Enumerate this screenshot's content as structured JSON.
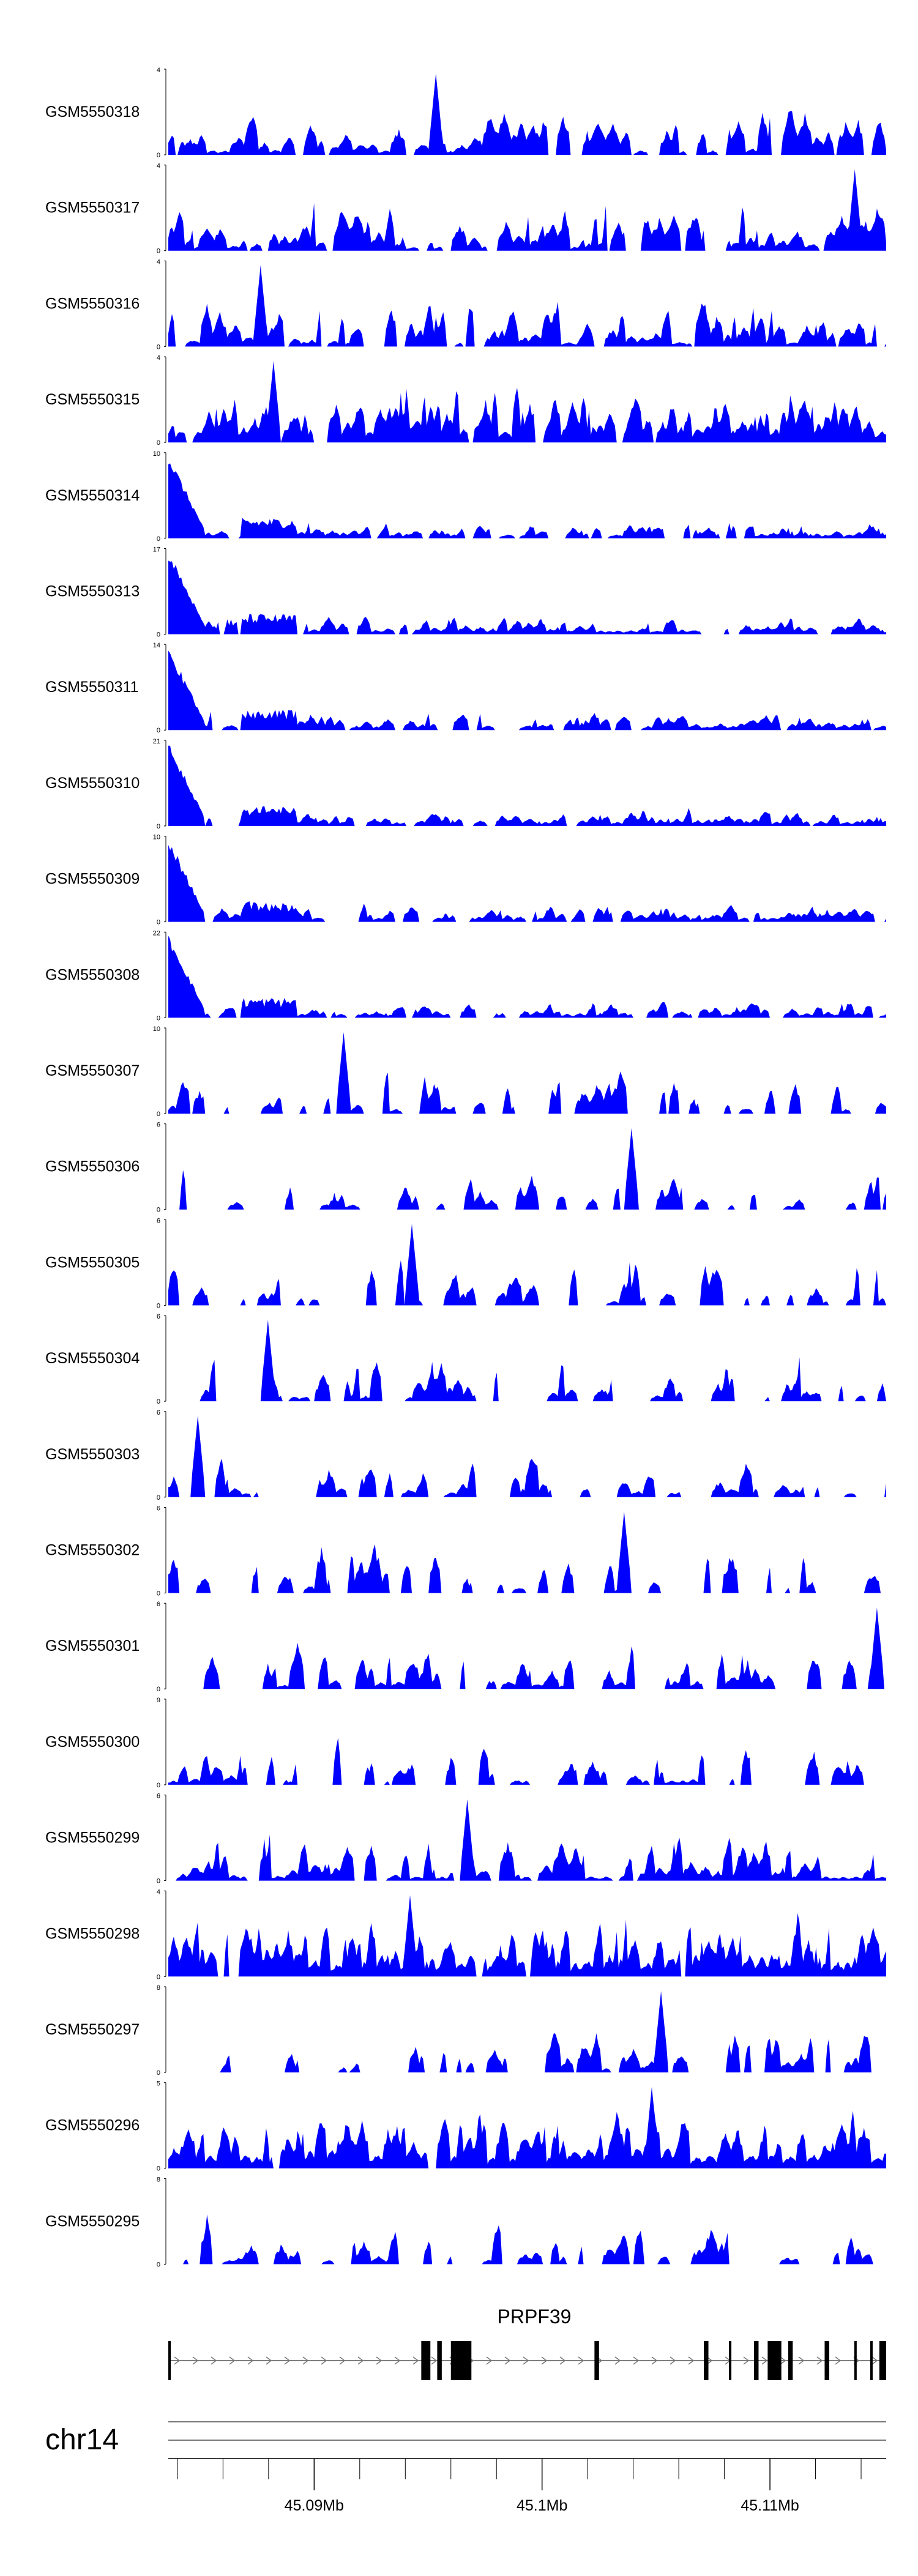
{
  "chart_data": {
    "type": "area",
    "colors": {
      "signal": "#0000ff",
      "axis": "#000000",
      "gene": "#000000",
      "ideogram": "#777777"
    },
    "tracks": [
      {
        "label": "GSM5550318",
        "ymax": "4",
        "ymin": "0",
        "max": 4,
        "style": "uniform",
        "seed": 318
      },
      {
        "label": "GSM5550317",
        "ymax": "4",
        "ymin": "0",
        "max": 4,
        "style": "uniform",
        "seed": 317
      },
      {
        "label": "GSM5550316",
        "ymax": "4",
        "ymin": "0",
        "max": 4,
        "style": "uniform",
        "seed": 316
      },
      {
        "label": "GSM5550315",
        "ymax": "4",
        "ymin": "0",
        "max": 4,
        "style": "dense",
        "seed": 315
      },
      {
        "label": "GSM5550314",
        "ymax": "10",
        "ymin": "0",
        "max": 10,
        "style": "leftpeak",
        "seed": 314
      },
      {
        "label": "GSM5550313",
        "ymax": "17",
        "ymin": "0",
        "max": 17,
        "style": "leftpeak",
        "seed": 313
      },
      {
        "label": "GSM5550311",
        "ymax": "14",
        "ymin": "0",
        "max": 14,
        "style": "leftpeak",
        "seed": 311
      },
      {
        "label": "GSM5550310",
        "ymax": "21",
        "ymin": "0",
        "max": 21,
        "style": "leftpeak",
        "seed": 310
      },
      {
        "label": "GSM5550309",
        "ymax": "10",
        "ymin": "0",
        "max": 10,
        "style": "leftpeak",
        "seed": 309
      },
      {
        "label": "GSM5550308",
        "ymax": "22",
        "ymin": "0",
        "max": 22,
        "style": "leftpeak",
        "seed": 308
      },
      {
        "label": "GSM5550307",
        "ymax": "10",
        "ymin": "0",
        "max": 10,
        "style": "sparse",
        "seed": 307
      },
      {
        "label": "GSM5550306",
        "ymax": "6",
        "ymin": "0",
        "max": 6,
        "style": "sparse",
        "seed": 306
      },
      {
        "label": "GSM5550305",
        "ymax": "6",
        "ymin": "0",
        "max": 6,
        "style": "sparse",
        "seed": 305
      },
      {
        "label": "GSM5550304",
        "ymax": "6",
        "ymin": "0",
        "max": 6,
        "style": "sparse",
        "seed": 304
      },
      {
        "label": "GSM5550303",
        "ymax": "6",
        "ymin": "0",
        "max": 6,
        "style": "sparse",
        "seed": 303
      },
      {
        "label": "GSM5550302",
        "ymax": "6",
        "ymin": "0",
        "max": 6,
        "style": "sparse",
        "seed": 302
      },
      {
        "label": "GSM5550301",
        "ymax": "6",
        "ymin": "0",
        "max": 6,
        "style": "sparse",
        "seed": 301
      },
      {
        "label": "GSM5550300",
        "ymax": "9",
        "ymin": "0",
        "max": 9,
        "style": "sparse",
        "seed": 300
      },
      {
        "label": "GSM5550299",
        "ymax": "6",
        "ymin": "0",
        "max": 6,
        "style": "uniform",
        "seed": 299
      },
      {
        "label": "GSM5550298",
        "ymax": "4",
        "ymin": "0",
        "max": 4,
        "style": "dense",
        "seed": 298
      },
      {
        "label": "GSM5550297",
        "ymax": "8",
        "ymin": "0",
        "max": 8,
        "style": "sparse",
        "seed": 297
      },
      {
        "label": "GSM5550296",
        "ymax": "5",
        "ymin": "0",
        "max": 5,
        "style": "dense",
        "seed": 296
      },
      {
        "label": "GSM5550295",
        "ymax": "8",
        "ymin": "0",
        "max": 8,
        "style": "sparse",
        "seed": 295
      }
    ],
    "gene": {
      "name": "PRPF39",
      "strand": "+",
      "start_mb": 45.0836,
      "end_mb": 45.1151,
      "exons_mb": [
        [
          45.0836,
          45.0837
        ],
        [
          45.0947,
          45.0951
        ],
        [
          45.0954,
          45.0956
        ],
        [
          45.096,
          45.0969
        ],
        [
          45.1023,
          45.1025
        ],
        [
          45.1071,
          45.1073
        ],
        [
          45.1082,
          45.1083
        ],
        [
          45.1093,
          45.1095
        ],
        [
          45.1099,
          45.1105
        ],
        [
          45.1108,
          45.111
        ],
        [
          45.1124,
          45.1126
        ],
        [
          45.1137,
          45.1138
        ],
        [
          45.1144,
          45.1145
        ],
        [
          45.1148,
          45.1151
        ]
      ]
    },
    "chromosome": "chr14",
    "xlim_mb": [
      45.0836,
      45.1151
    ],
    "xticks": [
      {
        "mb": 45.09,
        "label": "45.09Mb"
      },
      {
        "mb": 45.1,
        "label": "45.1Mb"
      },
      {
        "mb": 45.11,
        "label": "45.11Mb"
      }
    ],
    "minor_tick_step_mb": 0.002
  }
}
